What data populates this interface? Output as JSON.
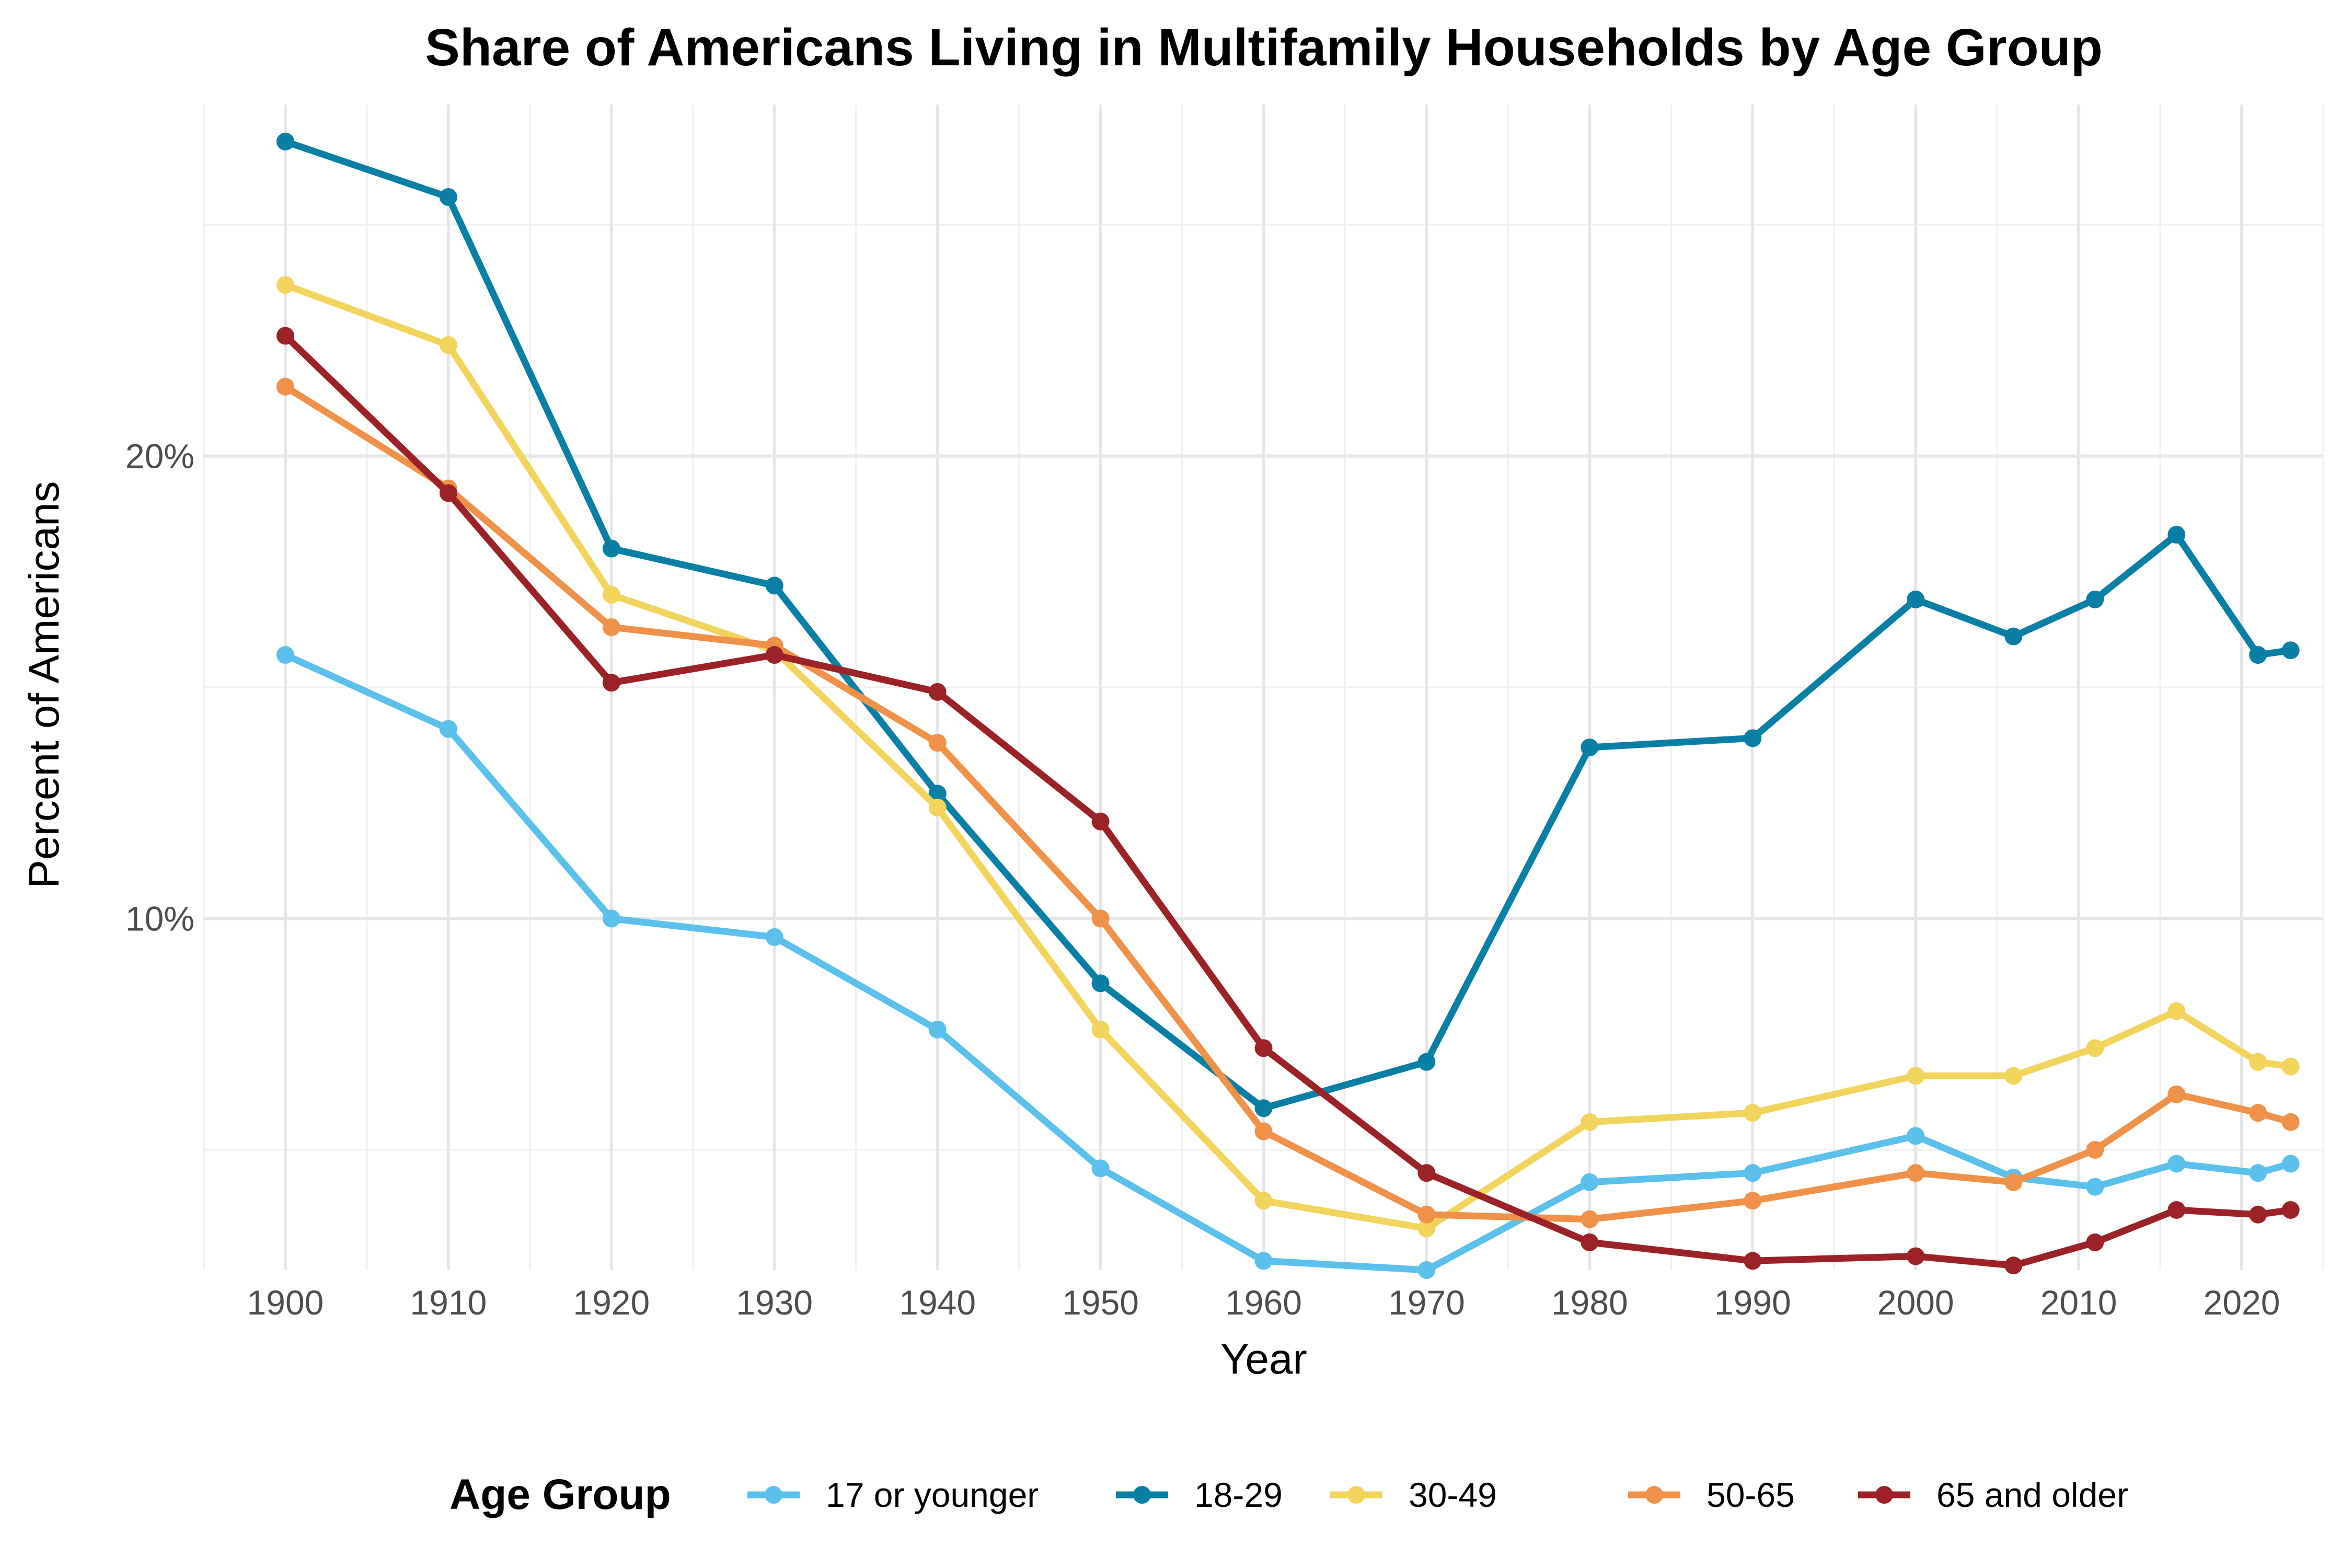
{
  "chart_data": {
    "type": "line",
    "title": "Share of Americans Living in Multifamily Households by Age Group",
    "xlabel": "Year",
    "ylabel": "Percent of Americans",
    "xlim": [
      1895,
      2025
    ],
    "ylim": [
      2.4,
      27.6
    ],
    "x_ticks": [
      1900,
      1910,
      1920,
      1930,
      1940,
      1950,
      1960,
      1970,
      1980,
      1990,
      2000,
      2010,
      2020
    ],
    "x_tick_labels": [
      "1900",
      "1910",
      "1920",
      "1930",
      "1940",
      "1950",
      "1960",
      "1970",
      "1980",
      "1990",
      "2000",
      "2010",
      "2020"
    ],
    "x_minor_ticks": [
      1895,
      1905,
      1915,
      1925,
      1935,
      1945,
      1955,
      1965,
      1975,
      1985,
      1995,
      2005,
      2015,
      2025
    ],
    "y_major_ticks": [
      10,
      20
    ],
    "y_tick_labels": [
      "10%",
      "20%"
    ],
    "y_minor_ticks": [
      5,
      15,
      25
    ],
    "grid": true,
    "legend": {
      "title": "Age Group",
      "position": "bottom"
    },
    "x": [
      1900,
      1910,
      1920,
      1930,
      1940,
      1950,
      1960,
      1970,
      1980,
      1990,
      2000,
      2006,
      2011,
      2016,
      2021,
      2023
    ],
    "series": [
      {
        "name": "17 or younger",
        "color": "#5bc0eb",
        "values": [
          15.7,
          14.1,
          10.0,
          9.6,
          7.6,
          4.6,
          2.6,
          2.4,
          4.3,
          4.5,
          5.3,
          4.4,
          4.2,
          4.7,
          4.5,
          4.7
        ]
      },
      {
        "name": "18-29",
        "color": "#0a7fa6",
        "values": [
          26.8,
          25.6,
          18.0,
          17.2,
          12.7,
          8.6,
          5.9,
          6.9,
          13.7,
          13.9,
          16.9,
          16.1,
          16.9,
          18.3,
          15.7,
          15.8
        ]
      },
      {
        "name": "30-49",
        "color": "#f2d45c",
        "values": [
          23.7,
          22.4,
          17.0,
          15.8,
          12.4,
          7.6,
          3.9,
          3.3,
          5.6,
          5.8,
          6.6,
          6.6,
          7.2,
          8.0,
          6.9,
          6.8
        ]
      },
      {
        "name": "50-65",
        "color": "#ef9148",
        "values": [
          21.5,
          19.3,
          16.3,
          15.9,
          13.8,
          10.0,
          5.4,
          3.6,
          3.5,
          3.9,
          4.5,
          4.3,
          5.0,
          6.2,
          5.8,
          5.6
        ]
      },
      {
        "name": "65 and older",
        "color": "#9b2226",
        "values": [
          22.6,
          19.2,
          15.1,
          15.7,
          14.9,
          12.1,
          7.2,
          4.5,
          3.0,
          2.6,
          2.7,
          2.5,
          3.0,
          3.7,
          3.6,
          3.7
        ]
      }
    ]
  }
}
